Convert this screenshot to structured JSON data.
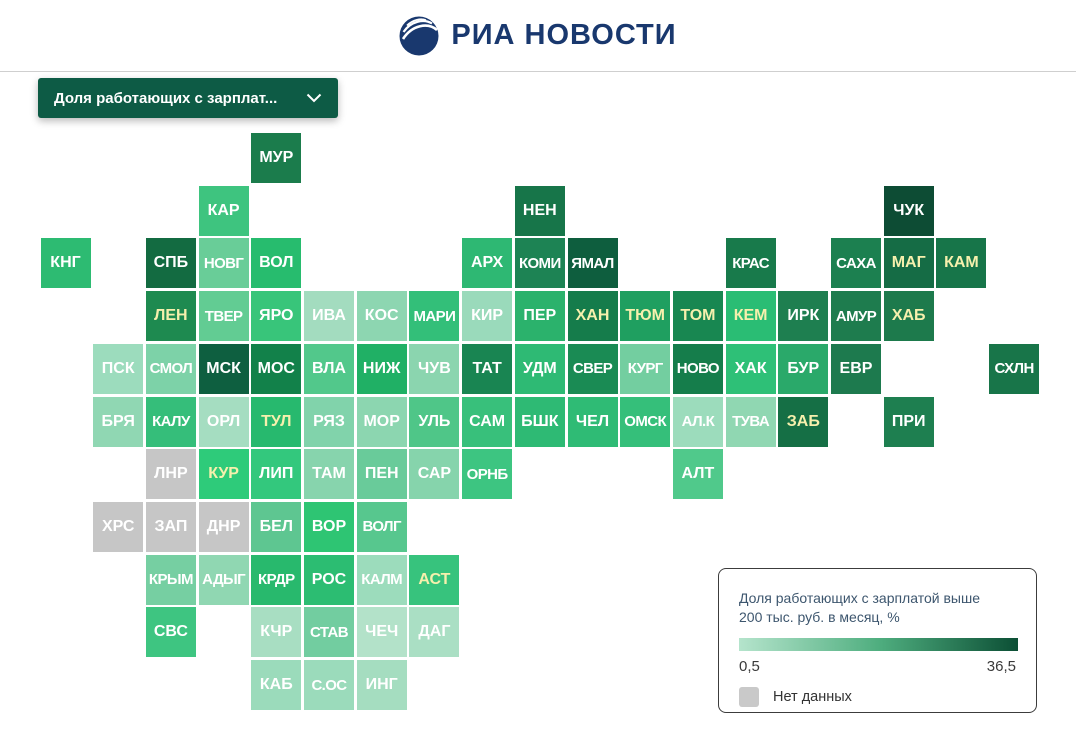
{
  "header": {
    "brand": "РИА НОВОСТИ",
    "brand_color": "#19386e"
  },
  "controls": {
    "dropdown_label": "Доля работающих с зарплат...",
    "dropdown_bg": "#0d5b45"
  },
  "legend": {
    "title_line1": "Доля работающих с зарплатой выше",
    "title_line2": "200 тыс. руб. в месяц, %",
    "min_label": "0,5",
    "max_label": "36,5",
    "no_data_label": "Нет данных",
    "no_data_color": "#c9c9c9",
    "gradient_from": "#b5e4cc",
    "gradient_mid": "#4fae7f",
    "gradient_to": "#0c4f35"
  },
  "chart_data": {
    "type": "heatmap",
    "title": "Доля работающих с зарплатой выше 200 тыс. руб. в месяц, %",
    "scale": {
      "min_label": "0,5",
      "max_label": "36,5",
      "no_data_label": "Нет данных"
    },
    "regions": [
      {
        "code": "МУР",
        "row": 0,
        "col": 4,
        "color": "#1b7c4c",
        "label_color": "#ffffff"
      },
      {
        "code": "КАР",
        "row": 1,
        "col": 3,
        "color": "#3ec47f",
        "label_color": "#ffffff"
      },
      {
        "code": "НЕН",
        "row": 1,
        "col": 9,
        "color": "#177549",
        "label_color": "#ffffff"
      },
      {
        "code": "ЧУК",
        "row": 1,
        "col": 16,
        "color": "#0d4c34",
        "label_color": "#ffffff"
      },
      {
        "code": "КНГ",
        "row": 2,
        "col": 0,
        "color": "#2dbb72",
        "label_color": "#ffffff"
      },
      {
        "code": "СПБ",
        "row": 2,
        "col": 2,
        "color": "#136b41",
        "label_color": "#ffffff"
      },
      {
        "code": "НОВГ",
        "row": 2,
        "col": 3,
        "color": "#69cd98",
        "label_color": "#ffffff"
      },
      {
        "code": "ВОЛ",
        "row": 2,
        "col": 4,
        "color": "#27bc6e",
        "label_color": "#ffffff"
      },
      {
        "code": "АРХ",
        "row": 2,
        "col": 8,
        "color": "#2eb873",
        "label_color": "#ffffff"
      },
      {
        "code": "КОМИ",
        "row": 2,
        "col": 9,
        "color": "#1d8354",
        "label_color": "#ffffff"
      },
      {
        "code": "ЯМАЛ",
        "row": 2,
        "col": 10,
        "color": "#0e5e3e",
        "label_color": "#ffffff"
      },
      {
        "code": "КРАС",
        "row": 2,
        "col": 13,
        "color": "#187a4b",
        "label_color": "#ffffff"
      },
      {
        "code": "САХА",
        "row": 2,
        "col": 15,
        "color": "#1c8050",
        "label_color": "#ffffff"
      },
      {
        "code": "МАГ",
        "row": 2,
        "col": 16,
        "color": "#156c45",
        "label_color": "#f6f0ad"
      },
      {
        "code": "КАМ",
        "row": 2,
        "col": 17,
        "color": "#177549",
        "label_color": "#f6f0ad"
      },
      {
        "code": "ЛЕН",
        "row": 3,
        "col": 2,
        "color": "#1e8a50",
        "label_color": "#f6f0ad"
      },
      {
        "code": "ТВЕР",
        "row": 3,
        "col": 3,
        "color": "#62cc93",
        "label_color": "#ffffff"
      },
      {
        "code": "ЯРО",
        "row": 3,
        "col": 4,
        "color": "#38c57a",
        "label_color": "#ffffff"
      },
      {
        "code": "ИВА",
        "row": 3,
        "col": 5,
        "color": "#a3dcbf",
        "label_color": "#ffffff"
      },
      {
        "code": "КОС",
        "row": 3,
        "col": 6,
        "color": "#8dd6b1",
        "label_color": "#ffffff"
      },
      {
        "code": "МАРИ",
        "row": 3,
        "col": 7,
        "color": "#33bf79",
        "label_color": "#ffffff"
      },
      {
        "code": "КИР",
        "row": 3,
        "col": 8,
        "color": "#9adabb",
        "label_color": "#ffffff"
      },
      {
        "code": "ПЕР",
        "row": 3,
        "col": 9,
        "color": "#2bb26c",
        "label_color": "#ffffff"
      },
      {
        "code": "ХАН",
        "row": 3,
        "col": 10,
        "color": "#157c4b",
        "label_color": "#f6f0ad"
      },
      {
        "code": "ТЮМ",
        "row": 3,
        "col": 11,
        "color": "#1f9f60",
        "label_color": "#f6f0ad"
      },
      {
        "code": "ТОМ",
        "row": 3,
        "col": 12,
        "color": "#188751",
        "label_color": "#f6f0ad"
      },
      {
        "code": "КЕМ",
        "row": 3,
        "col": 13,
        "color": "#2abd74",
        "label_color": "#f6f0ad"
      },
      {
        "code": "ИРК",
        "row": 3,
        "col": 14,
        "color": "#1e7f50",
        "label_color": "#ffffff"
      },
      {
        "code": "АМУР",
        "row": 3,
        "col": 15,
        "color": "#1e7c4e",
        "label_color": "#ffffff"
      },
      {
        "code": "ХАБ",
        "row": 3,
        "col": 16,
        "color": "#1d7a4c",
        "label_color": "#f6f0ad"
      },
      {
        "code": "ПСК",
        "row": 4,
        "col": 1,
        "color": "#9cdcbd",
        "label_color": "#ffffff"
      },
      {
        "code": "СМОЛ",
        "row": 4,
        "col": 2,
        "color": "#7dd2a8",
        "label_color": "#ffffff"
      },
      {
        "code": "МСК",
        "row": 4,
        "col": 3,
        "color": "#0e5f40",
        "label_color": "#ffffff"
      },
      {
        "code": "МОС",
        "row": 4,
        "col": 4,
        "color": "#12814a",
        "label_color": "#ffffff"
      },
      {
        "code": "ВЛА",
        "row": 4,
        "col": 5,
        "color": "#52c88b",
        "label_color": "#ffffff"
      },
      {
        "code": "НИЖ",
        "row": 4,
        "col": 6,
        "color": "#20b065",
        "label_color": "#ffffff"
      },
      {
        "code": "ЧУВ",
        "row": 4,
        "col": 7,
        "color": "#8bd5af",
        "label_color": "#ffffff"
      },
      {
        "code": "ТАТ",
        "row": 4,
        "col": 8,
        "color": "#198552",
        "label_color": "#ffffff"
      },
      {
        "code": "УДМ",
        "row": 4,
        "col": 9,
        "color": "#2eba74",
        "label_color": "#ffffff"
      },
      {
        "code": "СВЕР",
        "row": 4,
        "col": 10,
        "color": "#1a8b54",
        "label_color": "#ffffff"
      },
      {
        "code": "КУРГ",
        "row": 4,
        "col": 11,
        "color": "#73cea0",
        "label_color": "#ffffff"
      },
      {
        "code": "НОВО",
        "row": 4,
        "col": 12,
        "color": "#157d4b",
        "label_color": "#ffffff"
      },
      {
        "code": "ХАК",
        "row": 4,
        "col": 13,
        "color": "#2ec077",
        "label_color": "#ffffff"
      },
      {
        "code": "БУР",
        "row": 4,
        "col": 14,
        "color": "#2aa96a",
        "label_color": "#ffffff"
      },
      {
        "code": "ЕВР",
        "row": 4,
        "col": 15,
        "color": "#1d7a4e",
        "label_color": "#ffffff"
      },
      {
        "code": "СХЛН",
        "row": 4,
        "col": 18,
        "color": "#187549",
        "label_color": "#ffffff"
      },
      {
        "code": "БРЯ",
        "row": 5,
        "col": 1,
        "color": "#90d7b3",
        "label_color": "#ffffff"
      },
      {
        "code": "КАЛУ",
        "row": 5,
        "col": 2,
        "color": "#35be7a",
        "label_color": "#ffffff"
      },
      {
        "code": "ОРЛ",
        "row": 5,
        "col": 3,
        "color": "#a5ddc1",
        "label_color": "#ffffff"
      },
      {
        "code": "ТУЛ",
        "row": 5,
        "col": 4,
        "color": "#27b96e",
        "label_color": "#f6f0ad"
      },
      {
        "code": "РЯЗ",
        "row": 5,
        "col": 5,
        "color": "#81d3ab",
        "label_color": "#ffffff"
      },
      {
        "code": "МОР",
        "row": 5,
        "col": 6,
        "color": "#8cd6b0",
        "label_color": "#ffffff"
      },
      {
        "code": "УЛЬ",
        "row": 5,
        "col": 7,
        "color": "#4fc688",
        "label_color": "#ffffff"
      },
      {
        "code": "САМ",
        "row": 5,
        "col": 8,
        "color": "#38c07b",
        "label_color": "#ffffff"
      },
      {
        "code": "БШК",
        "row": 5,
        "col": 9,
        "color": "#2eba74",
        "label_color": "#ffffff"
      },
      {
        "code": "ЧЕЛ",
        "row": 5,
        "col": 10,
        "color": "#2fbb75",
        "label_color": "#ffffff"
      },
      {
        "code": "ОМСК",
        "row": 5,
        "col": 11,
        "color": "#35bf7a",
        "label_color": "#ffffff"
      },
      {
        "code": "АЛ.К",
        "row": 5,
        "col": 12,
        "color": "#9cdcbc",
        "label_color": "#ffffff"
      },
      {
        "code": "ТУВА",
        "row": 5,
        "col": 13,
        "color": "#90d7b2",
        "label_color": "#ffffff"
      },
      {
        "code": "ЗАБ",
        "row": 5,
        "col": 14,
        "color": "#156f45",
        "label_color": "#f6f0ad"
      },
      {
        "code": "ПРИ",
        "row": 5,
        "col": 16,
        "color": "#1e7f50",
        "label_color": "#ffffff"
      },
      {
        "code": "ЛНР",
        "row": 6,
        "col": 2,
        "color": "#c6c6c6",
        "label_color": "#ffffff"
      },
      {
        "code": "КУР",
        "row": 6,
        "col": 3,
        "color": "#2ecb7a",
        "label_color": "#f6f0ad"
      },
      {
        "code": "ЛИП",
        "row": 6,
        "col": 4,
        "color": "#33c87d",
        "label_color": "#ffffff"
      },
      {
        "code": "ТАМ",
        "row": 6,
        "col": 5,
        "color": "#87d4ad",
        "label_color": "#ffffff"
      },
      {
        "code": "ПЕН",
        "row": 6,
        "col": 6,
        "color": "#69cb9a",
        "label_color": "#ffffff"
      },
      {
        "code": "САР",
        "row": 6,
        "col": 7,
        "color": "#86d4ac",
        "label_color": "#ffffff"
      },
      {
        "code": "ОРНБ",
        "row": 6,
        "col": 8,
        "color": "#3dc581",
        "label_color": "#ffffff"
      },
      {
        "code": "АЛТ",
        "row": 6,
        "col": 12,
        "color": "#50c98b",
        "label_color": "#ffffff"
      },
      {
        "code": "ХРС",
        "row": 7,
        "col": 1,
        "color": "#c6c6c6",
        "label_color": "#ffffff"
      },
      {
        "code": "ЗАП",
        "row": 7,
        "col": 2,
        "color": "#c6c6c6",
        "label_color": "#ffffff"
      },
      {
        "code": "ДНР",
        "row": 7,
        "col": 3,
        "color": "#c6c6c6",
        "label_color": "#ffffff"
      },
      {
        "code": "БЕЛ",
        "row": 7,
        "col": 4,
        "color": "#5ec691",
        "label_color": "#ffffff"
      },
      {
        "code": "ВОР",
        "row": 7,
        "col": 5,
        "color": "#2ec573",
        "label_color": "#ffffff"
      },
      {
        "code": "ВОЛГ",
        "row": 7,
        "col": 6,
        "color": "#57c78e",
        "label_color": "#ffffff"
      },
      {
        "code": "КРЫМ",
        "row": 8,
        "col": 2,
        "color": "#76cfa2",
        "label_color": "#ffffff"
      },
      {
        "code": "АДЫГ",
        "row": 8,
        "col": 3,
        "color": "#90d7b2",
        "label_color": "#ffffff"
      },
      {
        "code": "КРДР",
        "row": 8,
        "col": 4,
        "color": "#28b96d",
        "label_color": "#ffffff"
      },
      {
        "code": "РОС",
        "row": 8,
        "col": 5,
        "color": "#2cbd72",
        "label_color": "#ffffff"
      },
      {
        "code": "КАЛМ",
        "row": 8,
        "col": 6,
        "color": "#9cdcbc",
        "label_color": "#ffffff"
      },
      {
        "code": "АСТ",
        "row": 8,
        "col": 7,
        "color": "#37c37d",
        "label_color": "#f6f0ad"
      },
      {
        "code": "СВС",
        "row": 9,
        "col": 2,
        "color": "#3ec581",
        "label_color": "#ffffff"
      },
      {
        "code": "КЧР",
        "row": 9,
        "col": 4,
        "color": "#a8dec2",
        "label_color": "#ffffff"
      },
      {
        "code": "СТАВ",
        "row": 9,
        "col": 5,
        "color": "#72cda0",
        "label_color": "#ffffff"
      },
      {
        "code": "ЧЕЧ",
        "row": 9,
        "col": 6,
        "color": "#b3e2c9",
        "label_color": "#ffffff"
      },
      {
        "code": "ДАГ",
        "row": 9,
        "col": 7,
        "color": "#aadfc4",
        "label_color": "#ffffff"
      },
      {
        "code": "КАБ",
        "row": 10,
        "col": 4,
        "color": "#9bdbbb",
        "label_color": "#ffffff"
      },
      {
        "code": "С.ОС",
        "row": 10,
        "col": 5,
        "color": "#9bdbbb",
        "label_color": "#ffffff"
      },
      {
        "code": "ИНГ",
        "row": 10,
        "col": 6,
        "color": "#a5ddc0",
        "label_color": "#ffffff"
      }
    ]
  }
}
